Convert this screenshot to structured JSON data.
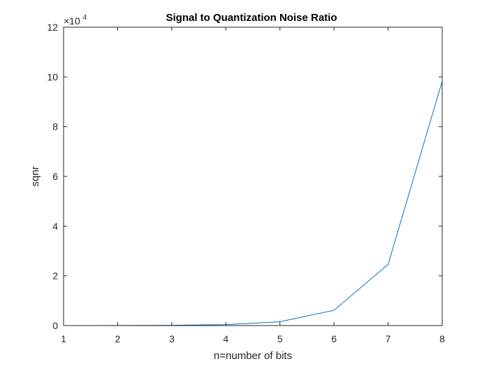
{
  "chart_data": {
    "type": "line",
    "title": "Signal to Quantization Noise Ratio",
    "xlabel": "n=number of bits",
    "ylabel": "sqnr",
    "xlim": [
      1,
      8
    ],
    "ylim": [
      0,
      120000
    ],
    "x_ticks": [
      1,
      2,
      3,
      4,
      5,
      6,
      7,
      8
    ],
    "y_ticks": [
      0,
      20000,
      40000,
      60000,
      80000,
      100000,
      120000
    ],
    "y_tick_labels": [
      "0",
      "2",
      "4",
      "6",
      "8",
      "10",
      "12"
    ],
    "y_multiplier": {
      "base": "×10",
      "exponent": "4"
    },
    "grid": false,
    "box": true,
    "series": [
      {
        "color": "#0072BD",
        "x": [
          1,
          2,
          3,
          4,
          5,
          6,
          7,
          8
        ],
        "y": [
          6,
          24,
          96,
          384,
          1536,
          6144,
          24576,
          98304
        ]
      }
    ]
  }
}
